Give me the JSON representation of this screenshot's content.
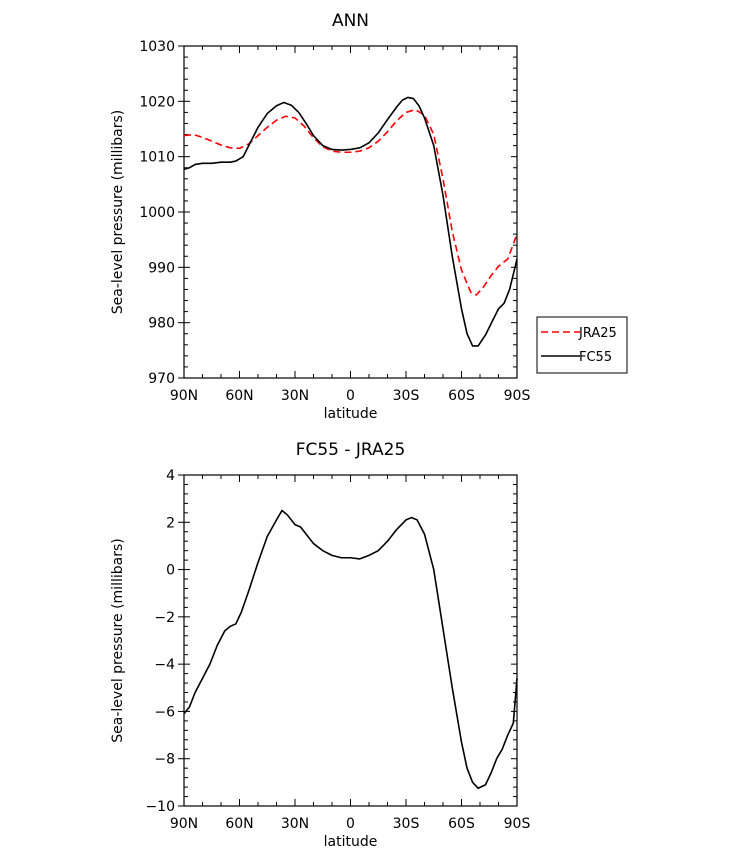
{
  "chart_data": [
    {
      "type": "line",
      "title": "ANN",
      "xlabel": "latitude",
      "ylabel": "Sea-level pressure (millibars)",
      "xlim": [
        90,
        -90
      ],
      "ylim": [
        970,
        1030
      ],
      "x_ticks": [
        90,
        60,
        30,
        0,
        -30,
        -60,
        -90
      ],
      "x_tick_labels": [
        "90N",
        "60N",
        "30N",
        "0",
        "30S",
        "60S",
        "90S"
      ],
      "y_ticks": [
        970,
        980,
        990,
        1000,
        1010,
        1020,
        1030
      ],
      "y_tick_labels": [
        "970",
        "980",
        "990",
        "1000",
        "1010",
        "1020",
        "1030"
      ],
      "legend": "right",
      "grid": false,
      "series": [
        {
          "name": "JRA25",
          "color": "#ff0000",
          "style": "dashed",
          "points": [
            [
              90,
              1013.8
            ],
            [
              85,
              1014
            ],
            [
              80,
              1013.5
            ],
            [
              75,
              1012.8
            ],
            [
              70,
              1012.1
            ],
            [
              65,
              1011.6
            ],
            [
              60,
              1011.5
            ],
            [
              55,
              1012.3
            ],
            [
              50,
              1013.8
            ],
            [
              45,
              1015.3
            ],
            [
              40,
              1016.6
            ],
            [
              35,
              1017.3
            ],
            [
              30,
              1017
            ],
            [
              25,
              1015.5
            ],
            [
              20,
              1013.4
            ],
            [
              15,
              1011.8
            ],
            [
              10,
              1011
            ],
            [
              5,
              1010.8
            ],
            [
              0,
              1010.8
            ],
            [
              -5,
              1011
            ],
            [
              -10,
              1011.6
            ],
            [
              -15,
              1012.8
            ],
            [
              -20,
              1014.5
            ],
            [
              -25,
              1016.5
            ],
            [
              -30,
              1018
            ],
            [
              -35,
              1018.5
            ],
            [
              -40,
              1017.5
            ],
            [
              -45,
              1014
            ],
            [
              -50,
              1006
            ],
            [
              -55,
              996.5
            ],
            [
              -60,
              989.5
            ],
            [
              -65,
              985.5
            ],
            [
              -68,
              985
            ],
            [
              -72,
              986.5
            ],
            [
              -76,
              988.5
            ],
            [
              -80,
              990.2
            ],
            [
              -85,
              991.5
            ],
            [
              -90,
              996
            ]
          ]
        },
        {
          "name": "FC55",
          "color": "#000000",
          "style": "solid",
          "points": [
            [
              90,
              1007.7
            ],
            [
              87,
              1008
            ],
            [
              84,
              1008.6
            ],
            [
              80,
              1008.8
            ],
            [
              75,
              1008.8
            ],
            [
              70,
              1009
            ],
            [
              65,
              1009
            ],
            [
              62,
              1009.2
            ],
            [
              58,
              1010
            ],
            [
              55,
              1012
            ],
            [
              50,
              1015.3
            ],
            [
              45,
              1017.8
            ],
            [
              40,
              1019.2
            ],
            [
              36,
              1019.8
            ],
            [
              32,
              1019.3
            ],
            [
              28,
              1018
            ],
            [
              24,
              1016
            ],
            [
              20,
              1013.8
            ],
            [
              15,
              1012
            ],
            [
              10,
              1011.3
            ],
            [
              5,
              1011.2
            ],
            [
              0,
              1011.3
            ],
            [
              -5,
              1011.6
            ],
            [
              -10,
              1012.5
            ],
            [
              -15,
              1014.3
            ],
            [
              -20,
              1016.7
            ],
            [
              -25,
              1019
            ],
            [
              -28,
              1020.2
            ],
            [
              -31,
              1020.7
            ],
            [
              -34,
              1020.5
            ],
            [
              -37,
              1019.2
            ],
            [
              -40,
              1017
            ],
            [
              -45,
              1012
            ],
            [
              -50,
              1003
            ],
            [
              -55,
              992
            ],
            [
              -60,
              982.5
            ],
            [
              -63,
              978
            ],
            [
              -66,
              975.8
            ],
            [
              -69,
              975.8
            ],
            [
              -73,
              977.8
            ],
            [
              -77,
              980.5
            ],
            [
              -80,
              982.5
            ],
            [
              -83,
              983.5
            ],
            [
              -86,
              986
            ],
            [
              -90,
              991.5
            ]
          ]
        }
      ]
    },
    {
      "type": "line",
      "title": "FC55 - JRA25",
      "xlabel": "latitude",
      "ylabel": "Sea-level pressure (millibars)",
      "xlim": [
        90,
        -90
      ],
      "ylim": [
        -10,
        4
      ],
      "x_ticks": [
        90,
        60,
        30,
        0,
        -30,
        -60,
        -90
      ],
      "x_tick_labels": [
        "90N",
        "60N",
        "30N",
        "0",
        "30S",
        "60S",
        "90S"
      ],
      "y_ticks": [
        -10,
        -8,
        -6,
        -4,
        -2,
        0,
        2,
        4
      ],
      "y_tick_labels": [
        "−10",
        "−8",
        "−6",
        "−4",
        "−2",
        "0",
        "2",
        "4"
      ],
      "grid": false,
      "series": [
        {
          "color": "#000000",
          "style": "solid",
          "points": [
            [
              90,
              -6.1
            ],
            [
              87,
              -5.8
            ],
            [
              84,
              -5.2
            ],
            [
              80,
              -4.6
            ],
            [
              76,
              -4
            ],
            [
              72,
              -3.2
            ],
            [
              68,
              -2.6
            ],
            [
              65,
              -2.4
            ],
            [
              62,
              -2.3
            ],
            [
              59,
              -1.8
            ],
            [
              55,
              -0.9
            ],
            [
              50,
              0.3
            ],
            [
              45,
              1.4
            ],
            [
              40,
              2.1
            ],
            [
              37,
              2.5
            ],
            [
              34,
              2.3
            ],
            [
              30,
              1.9
            ],
            [
              27,
              1.8
            ],
            [
              24,
              1.5
            ],
            [
              20,
              1.1
            ],
            [
              15,
              0.8
            ],
            [
              10,
              0.6
            ],
            [
              5,
              0.5
            ],
            [
              0,
              0.5
            ],
            [
              -5,
              0.45
            ],
            [
              -10,
              0.6
            ],
            [
              -15,
              0.8
            ],
            [
              -20,
              1.2
            ],
            [
              -25,
              1.7
            ],
            [
              -30,
              2.1
            ],
            [
              -33,
              2.2
            ],
            [
              -36,
              2.1
            ],
            [
              -40,
              1.5
            ],
            [
              -45,
              0
            ],
            [
              -50,
              -2.5
            ],
            [
              -55,
              -5
            ],
            [
              -60,
              -7.3
            ],
            [
              -63,
              -8.4
            ],
            [
              -66,
              -9
            ],
            [
              -69,
              -9.25
            ],
            [
              -73,
              -9.1
            ],
            [
              -76,
              -8.6
            ],
            [
              -79,
              -8
            ],
            [
              -82,
              -7.6
            ],
            [
              -85,
              -7
            ],
            [
              -88,
              -6.5
            ],
            [
              -90,
              -4.6
            ]
          ]
        }
      ]
    }
  ]
}
